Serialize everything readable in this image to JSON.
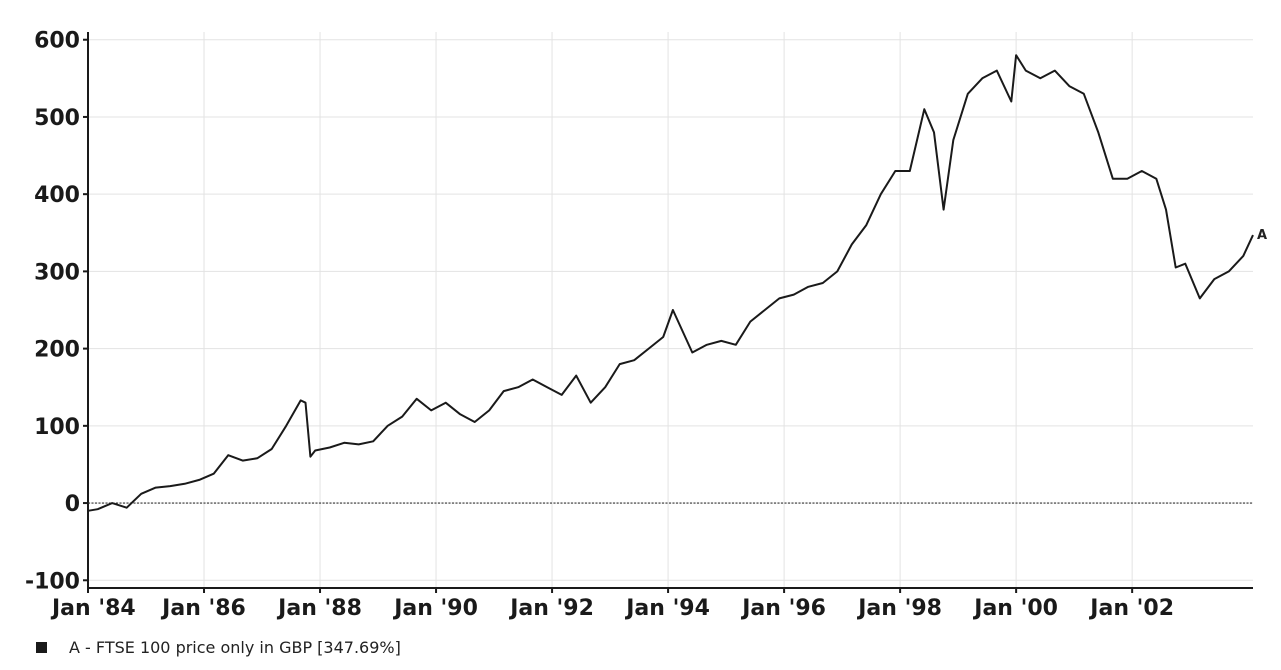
{
  "chart_data": {
    "type": "line",
    "title": "",
    "xlabel": "",
    "ylabel": "",
    "x_ticks": [
      "Jan '84",
      "Jan '86",
      "Jan '88",
      "Jan '90",
      "Jan '92",
      "Jan '94",
      "Jan '96",
      "Jan '98",
      "Jan '00",
      "Jan '02"
    ],
    "y_ticks": [
      "-100",
      "0",
      "100",
      "200",
      "300",
      "400",
      "500",
      "600"
    ],
    "xlim": [
      "1984-01",
      "2004-02"
    ],
    "ylim": [
      -110,
      610
    ],
    "grid": true,
    "legend_position": "bottom-left",
    "baseline": 0,
    "series": [
      {
        "name": "A - FTSE 100 price only in GBP [347.69%]",
        "end_label": "A",
        "color": "#1a1a1a",
        "x": [
          "1984-01",
          "1984-03",
          "1984-06",
          "1984-09",
          "1984-12",
          "1985-03",
          "1985-06",
          "1985-09",
          "1985-12",
          "1986-03",
          "1986-06",
          "1986-09",
          "1986-12",
          "1987-03",
          "1987-06",
          "1987-09",
          "1987-10",
          "1987-11",
          "1987-12",
          "1988-03",
          "1988-06",
          "1988-09",
          "1988-12",
          "1989-03",
          "1989-06",
          "1989-09",
          "1989-12",
          "1990-03",
          "1990-06",
          "1990-09",
          "1990-12",
          "1991-03",
          "1991-06",
          "1991-09",
          "1991-12",
          "1992-03",
          "1992-06",
          "1992-09",
          "1992-12",
          "1993-03",
          "1993-06",
          "1993-09",
          "1993-12",
          "1994-02",
          "1994-06",
          "1994-09",
          "1994-12",
          "1995-03",
          "1995-06",
          "1995-09",
          "1995-12",
          "1996-03",
          "1996-06",
          "1996-09",
          "1996-12",
          "1997-03",
          "1997-06",
          "1997-09",
          "1997-12",
          "1998-03",
          "1998-06",
          "1998-08",
          "1998-10",
          "1998-12",
          "1999-03",
          "1999-06",
          "1999-09",
          "1999-12",
          "2000-01",
          "2000-03",
          "2000-06",
          "2000-09",
          "2000-12",
          "2001-03",
          "2001-06",
          "2001-09",
          "2001-12",
          "2002-03",
          "2002-06",
          "2002-08",
          "2002-10",
          "2002-12",
          "2003-03",
          "2003-06",
          "2003-09",
          "2003-12",
          "2004-02"
        ],
        "y": [
          -10,
          -8,
          0,
          -6,
          12,
          20,
          22,
          25,
          30,
          38,
          62,
          55,
          58,
          70,
          100,
          133,
          130,
          60,
          68,
          72,
          78,
          76,
          80,
          100,
          112,
          135,
          120,
          130,
          115,
          105,
          120,
          145,
          150,
          160,
          150,
          140,
          165,
          130,
          150,
          180,
          185,
          200,
          215,
          250,
          195,
          205,
          210,
          205,
          235,
          250,
          265,
          270,
          280,
          285,
          300,
          335,
          360,
          400,
          430,
          430,
          510,
          480,
          380,
          470,
          530,
          550,
          560,
          520,
          580,
          560,
          550,
          560,
          540,
          530,
          480,
          420,
          420,
          430,
          420,
          380,
          305,
          310,
          265,
          290,
          300,
          320,
          347
        ]
      }
    ]
  }
}
